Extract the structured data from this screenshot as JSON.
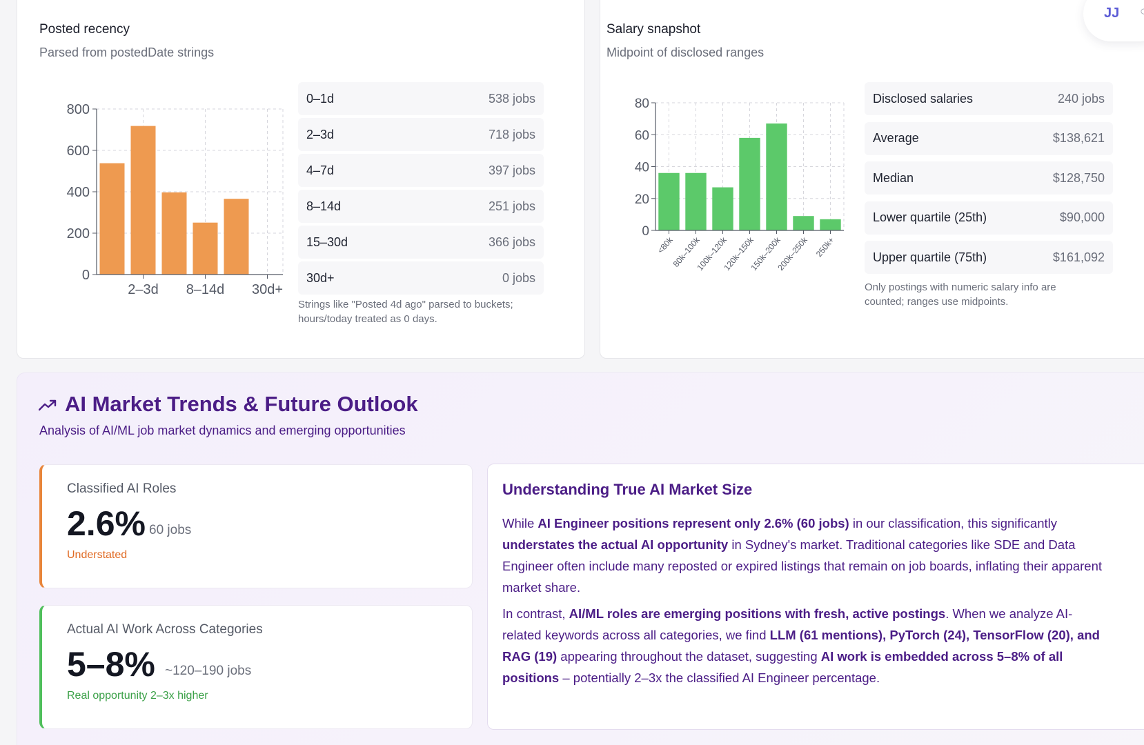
{
  "recency": {
    "title": "Posted recency",
    "subtitle": "Parsed from postedDate strings",
    "rows": [
      {
        "label": "0–1d",
        "value": "538 jobs"
      },
      {
        "label": "2–3d",
        "value": "718 jobs"
      },
      {
        "label": "4–7d",
        "value": "397 jobs"
      },
      {
        "label": "8–14d",
        "value": "251 jobs"
      },
      {
        "label": "15–30d",
        "value": "366 jobs"
      },
      {
        "label": "30d+",
        "value": "0 jobs"
      }
    ],
    "note": "Strings like \"Posted 4d ago\" parsed to buckets; hours/today treated as 0 days."
  },
  "salary": {
    "title": "Salary snapshot",
    "subtitle": "Midpoint of disclosed ranges",
    "rows": [
      {
        "label": "Disclosed salaries",
        "value": "240 jobs"
      },
      {
        "label": "Average",
        "value": "$138,621"
      },
      {
        "label": "Median",
        "value": "$128,750"
      },
      {
        "label": "Lower quartile (25th)",
        "value": "$90,000"
      },
      {
        "label": "Upper quartile (75th)",
        "value": "$161,092"
      }
    ],
    "note": "Only postings with numeric salary info are counted; ranges use midpoints."
  },
  "user": {
    "initials": "JJ"
  },
  "trends": {
    "title": "AI Market Trends & Future Outlook",
    "subtitle": "Analysis of AI/ML job market dynamics and emerging opportunities",
    "metric1": {
      "label": "Classified AI Roles",
      "value": "2.6%",
      "count": "60 jobs",
      "foot": "Understated",
      "color": "#e8853a"
    },
    "metric2": {
      "label": "Actual AI Work Across Categories",
      "value": "5–8%",
      "count": "~120–190 jobs",
      "foot": "Real opportunity 2–3x higher",
      "color": "#4fbf5b"
    },
    "insight": {
      "title": "Understanding True AI Market Size",
      "p1": {
        "t1": "While ",
        "b1": "AI Engineer positions represent only 2.6% (60 jobs)",
        "t2": " in our classification, this significantly ",
        "b2": "understates the actual AI opportunity",
        "t3": " in Sydney's market. Traditional categories like SDE and Data Engineer often include many reposted or expired listings that remain on job boards, inflating their apparent market share."
      },
      "p2": {
        "t1": "In contrast, ",
        "b1": "AI/ML roles are emerging positions with fresh, active postings",
        "t2": ". When we analyze AI-related keywords across all categories, we find ",
        "b2": "LLM (61 mentions), PyTorch (24), TensorFlow (20), and RAG (19)",
        "t3": " appearing throughout the dataset, suggesting ",
        "b3": "AI work is embedded across 5–8% of all positions",
        "t4": " – potentially 2–3x the classified AI Engineer percentage."
      }
    }
  },
  "chart_data": [
    {
      "type": "bar",
      "categories": [
        "0–1d",
        "2–3d",
        "4–7d",
        "8–14d",
        "15–30d",
        "30d+"
      ],
      "tick_labels": [
        "2–3d",
        "8–14d",
        "30d+"
      ],
      "values": [
        538,
        718,
        397,
        251,
        366,
        0
      ],
      "ylim": [
        0,
        800
      ],
      "yticks": [
        0,
        200,
        400,
        600,
        800
      ],
      "grid": true,
      "color": "#ee9a50"
    },
    {
      "type": "bar",
      "categories": [
        "<80k",
        "80k–100k",
        "100k–120k",
        "120k–150k",
        "150k–200k",
        "200k–250k",
        "250k+"
      ],
      "values": [
        36,
        36,
        27,
        58,
        67,
        9,
        7
      ],
      "ylim": [
        0,
        80
      ],
      "yticks": [
        0,
        20,
        40,
        60,
        80
      ],
      "grid": true,
      "color": "#5cc96a"
    }
  ]
}
